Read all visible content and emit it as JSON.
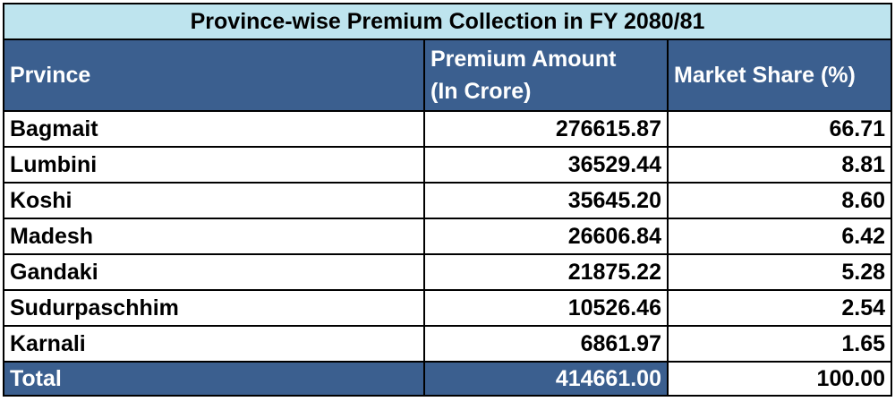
{
  "colors": {
    "title_bg": "#bee4ee",
    "header_bg": "#3b5f8f",
    "header_text": "#ffffff",
    "border": "#000000"
  },
  "chart_data": {
    "type": "table",
    "title": "Province-wise Premium Collection in FY 2080/81",
    "columns": [
      "Prvince",
      "Premium Amount (In Crore)",
      "Market Share (%)"
    ],
    "header": {
      "col1": "Prvince",
      "col2_line1": "Premium Amount",
      "col2_line2": "(In Crore)",
      "col3": "Market Share (%)"
    },
    "rows": [
      [
        "Bagmait",
        "276615.87",
        "66.71"
      ],
      [
        "Lumbini",
        "36529.44",
        "8.81"
      ],
      [
        "Koshi",
        "35645.20",
        "8.60"
      ],
      [
        "Madesh",
        "26606.84",
        "6.42"
      ],
      [
        "Gandaki",
        "21875.22",
        "5.28"
      ],
      [
        "Sudurpaschhim",
        "10526.46",
        "2.54"
      ],
      [
        "Karnali",
        "6861.97",
        "1.65"
      ]
    ],
    "total": [
      "Total",
      "414661.00",
      "100.00"
    ]
  }
}
